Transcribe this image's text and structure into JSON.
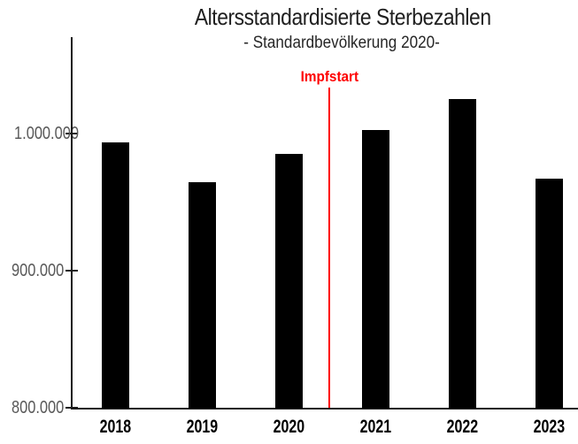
{
  "chart_data": {
    "type": "bar",
    "title": "Altersstandardisierte Sterbezahlen",
    "subtitle": "- Standardbevölkerung 2020-",
    "xlabel": "",
    "ylabel": "",
    "categories": [
      "2018",
      "2019",
      "2020",
      "2021",
      "2022",
      "2023"
    ],
    "values": [
      993000,
      964000,
      985000,
      1002000,
      1025000,
      967000
    ],
    "ylim": [
      800000,
      1070000
    ],
    "yticks": [
      {
        "value": 800000,
        "label": "800.000"
      },
      {
        "value": 900000,
        "label": "900.000"
      },
      {
        "value": 1000000,
        "label": "1.000.000"
      }
    ],
    "grid": false,
    "legend": null,
    "bar_color": "#000000",
    "axis_color": "#1a1a1a",
    "ytick_label_color": "#595959",
    "annotation": {
      "label": "Impfstart",
      "color": "#fe0000",
      "between_categories": [
        "2020",
        "2021"
      ]
    }
  }
}
